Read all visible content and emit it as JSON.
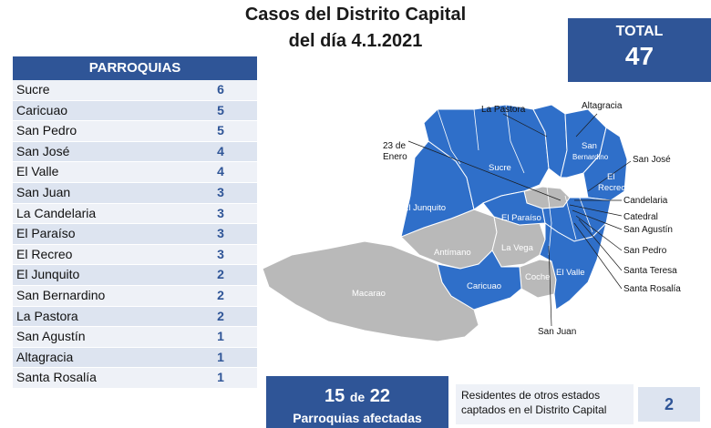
{
  "title": {
    "line1": "Casos del Distrito Capital",
    "line2": "del día 4.1.2021"
  },
  "total": {
    "label": "TOTAL",
    "value": "47"
  },
  "table": {
    "header": "PARROQUIAS",
    "rows": [
      {
        "name": "Sucre",
        "count": "6"
      },
      {
        "name": "Caricuao",
        "count": "5"
      },
      {
        "name": "San Pedro",
        "count": "5"
      },
      {
        "name": "San José",
        "count": "4"
      },
      {
        "name": "El Valle",
        "count": "4"
      },
      {
        "name": "San Juan",
        "count": "3"
      },
      {
        "name": "La Candelaria",
        "count": "3"
      },
      {
        "name": "El Paraíso",
        "count": "3"
      },
      {
        "name": "El Recreo",
        "count": "3"
      },
      {
        "name": "El Junquito",
        "count": "2"
      },
      {
        "name": "San Bernardino",
        "count": "2"
      },
      {
        "name": "La Pastora",
        "count": "2"
      },
      {
        "name": "San Agustín",
        "count": "1"
      },
      {
        "name": "Altagracia",
        "count": "1"
      },
      {
        "name": "Santa Rosalía",
        "count": "1"
      }
    ]
  },
  "map": {
    "colors": {
      "affected": "#2f6fc9",
      "unaffected": "#b9b9b9",
      "border": "#ffffff"
    },
    "outside_labels": {
      "la_pastora": "La Pastora",
      "altagracia": "Altagracia",
      "veintitres_line1": "23 de",
      "veintitres_line2": "Enero",
      "san_jose": "San José",
      "candelaria": "Candelaria",
      "catedral": "Catedral",
      "san_agustin": "San Agustín",
      "san_pedro": "San Pedro",
      "santa_teresa": "Santa Teresa",
      "santa_rosalia": "Santa Rosalía",
      "san_juan": "San Juan"
    },
    "inside_labels": {
      "sucre": "Sucre",
      "san_bernardino_1": "San",
      "san_bernardino_2": "Bernardino",
      "el_recreo_1": "El",
      "el_recreo_2": "Recreo",
      "el_junquito": "El Junquito",
      "el_paraiso": "El Paraíso",
      "antimano": "Antímano",
      "la_vega": "La Vega",
      "coche": "Coche",
      "el_valle": "El Valle",
      "caricuao": "Caricuao",
      "macarao": "Macarao"
    }
  },
  "affected": {
    "count": "15",
    "connector": "de",
    "of_total": "22",
    "label": "Parroquias afectadas"
  },
  "residents": {
    "line1": "Residentes de otros estados",
    "line2": "captados en el Distrito Capital",
    "value": "2"
  }
}
